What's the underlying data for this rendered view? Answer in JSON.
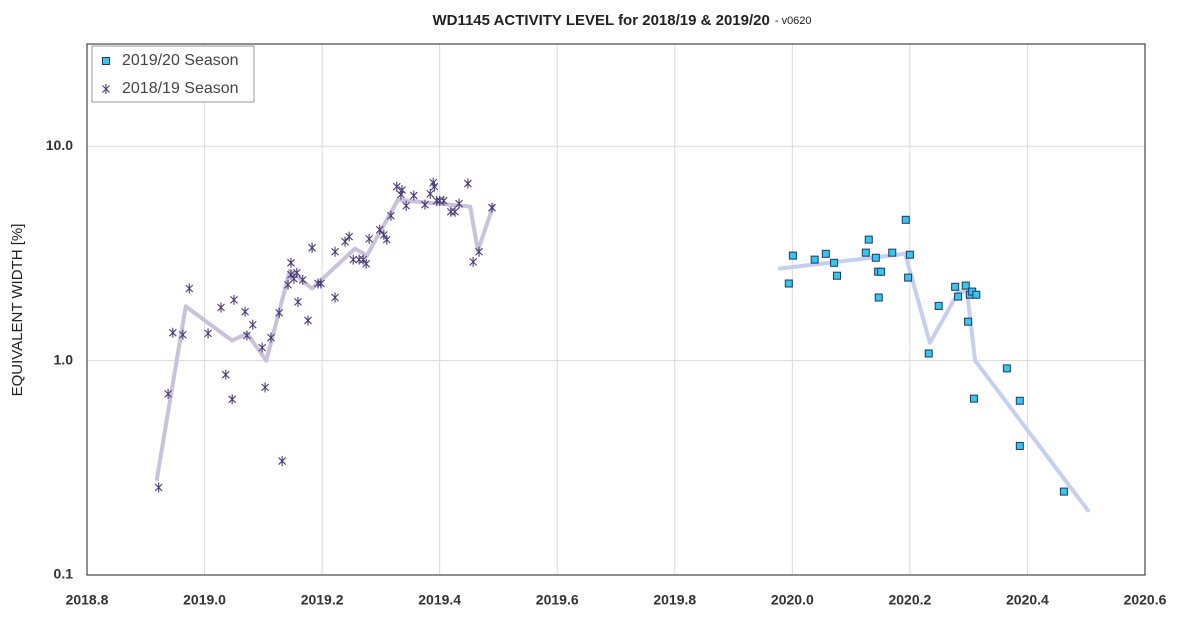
{
  "chart_data": {
    "type": "scatter",
    "title": "WD1145 ACTIVITY LEVEL for 2018/19 & 2019/20",
    "subtitle": "- v0620",
    "y_label": "EQUIVALENT WIDTH [%]",
    "log_y": true,
    "grid": true,
    "legend": "top-left",
    "xlim": [
      2018.8,
      2020.6
    ],
    "xticks": [
      2018.8,
      {
        "value": 2019,
        "label": "2019.0"
      },
      2019.2,
      2019.4,
      2019.6,
      2019.8,
      {
        "value": 2020,
        "label": "2020.0"
      },
      2020.2,
      2020.4,
      2020.6
    ],
    "ylim": [
      0.1,
      30
    ],
    "yticks": [
      0.1,
      {
        "value": 1,
        "label": "1.0"
      },
      {
        "value": 10,
        "label": "10.0"
      }
    ],
    "series": [
      {
        "name": "2019/20 Season",
        "marker": "square",
        "color": "#33c6f0",
        "edge_color": "#1f3864",
        "x": [
          2019.994,
          2020.001,
          2020.038,
          2020.057,
          2020.071,
          2020.076,
          2020.125,
          2020.13,
          2020.142,
          2020.146,
          2020.147,
          2020.151,
          2020.17,
          2020.193,
          2020.197,
          2020.2,
          2020.232,
          2020.249,
          2020.277,
          2020.282,
          2020.295,
          2020.299,
          2020.302,
          2020.306,
          2020.309,
          2020.313,
          2020.365,
          2020.387,
          2020.387,
          2020.462
        ],
        "values": [
          2.29,
          3.09,
          2.96,
          3.15,
          2.86,
          2.49,
          3.19,
          3.67,
          3.02,
          2.6,
          1.97,
          2.6,
          3.19,
          4.54,
          2.44,
          3.12,
          1.08,
          1.8,
          2.21,
          1.99,
          2.24,
          1.52,
          2.03,
          2.1,
          0.665,
          2.03,
          0.92,
          0.65,
          0.4,
          0.245
        ]
      },
      {
        "name": "2018/19 Season",
        "marker": "asterisk",
        "color": "#4b3a78",
        "x": [
          2018.922,
          2018.938,
          2018.946,
          2018.963,
          2018.974,
          2019.006,
          2019.028,
          2019.036,
          2019.047,
          2019.05,
          2019.069,
          2019.072,
          2019.082,
          2019.098,
          2019.103,
          2019.113,
          2019.127,
          2019.132,
          2019.142,
          2019.147,
          2019.147,
          2019.152,
          2019.157,
          2019.159,
          2019.167,
          2019.176,
          2019.183,
          2019.193,
          2019.198,
          2019.222,
          2019.222,
          2019.239,
          2019.246,
          2019.253,
          2019.263,
          2019.27,
          2019.275,
          2019.28,
          2019.298,
          2019.305,
          2019.31,
          2019.317,
          2019.327,
          2019.334,
          2019.336,
          2019.343,
          2019.356,
          2019.375,
          2019.384,
          2019.389,
          2019.391,
          2019.395,
          2019.4,
          2019.407,
          2019.419,
          2019.426,
          2019.433,
          2019.448,
          2019.457,
          2019.467,
          2019.489
        ],
        "values": [
          0.256,
          0.7,
          1.35,
          1.32,
          2.17,
          1.34,
          1.77,
          0.86,
          0.66,
          1.92,
          1.69,
          1.31,
          1.47,
          1.15,
          0.75,
          1.28,
          1.67,
          0.34,
          2.26,
          2.86,
          2.52,
          2.41,
          2.57,
          1.88,
          2.38,
          1.54,
          3.36,
          2.29,
          2.29,
          3.22,
          1.97,
          3.59,
          3.79,
          2.96,
          2.96,
          2.96,
          2.83,
          3.7,
          4.08,
          3.86,
          3.67,
          4.74,
          6.48,
          5.95,
          6.25,
          5.28,
          5.89,
          5.34,
          6.0,
          6.76,
          6.48,
          5.57,
          5.57,
          5.57,
          4.95,
          4.95,
          5.4,
          6.7,
          2.89,
          3.22,
          5.17
        ]
      }
    ],
    "trend_lines": [
      {
        "color": "#c9c1de",
        "x": [
          2018.919,
          2018.968,
          2019.047,
          2019.072,
          2019.105,
          2019.145,
          2019.183,
          2019.256,
          2019.276,
          2019.329,
          2019.452,
          2019.465,
          2019.491
        ],
        "values": [
          0.28,
          1.79,
          1.24,
          1.34,
          1.0,
          2.63,
          2.17,
          3.33,
          3.09,
          5.62,
          5.23,
          3.26,
          5.28
        ]
      },
      {
        "color": "#c5cff2",
        "x": [
          2019.979,
          2020.192,
          2020.234,
          2020.282,
          2020.297,
          2020.311,
          2020.503
        ],
        "values": [
          2.69,
          3.15,
          1.21,
          2.08,
          2.12,
          1.0,
          0.2
        ]
      }
    ]
  }
}
